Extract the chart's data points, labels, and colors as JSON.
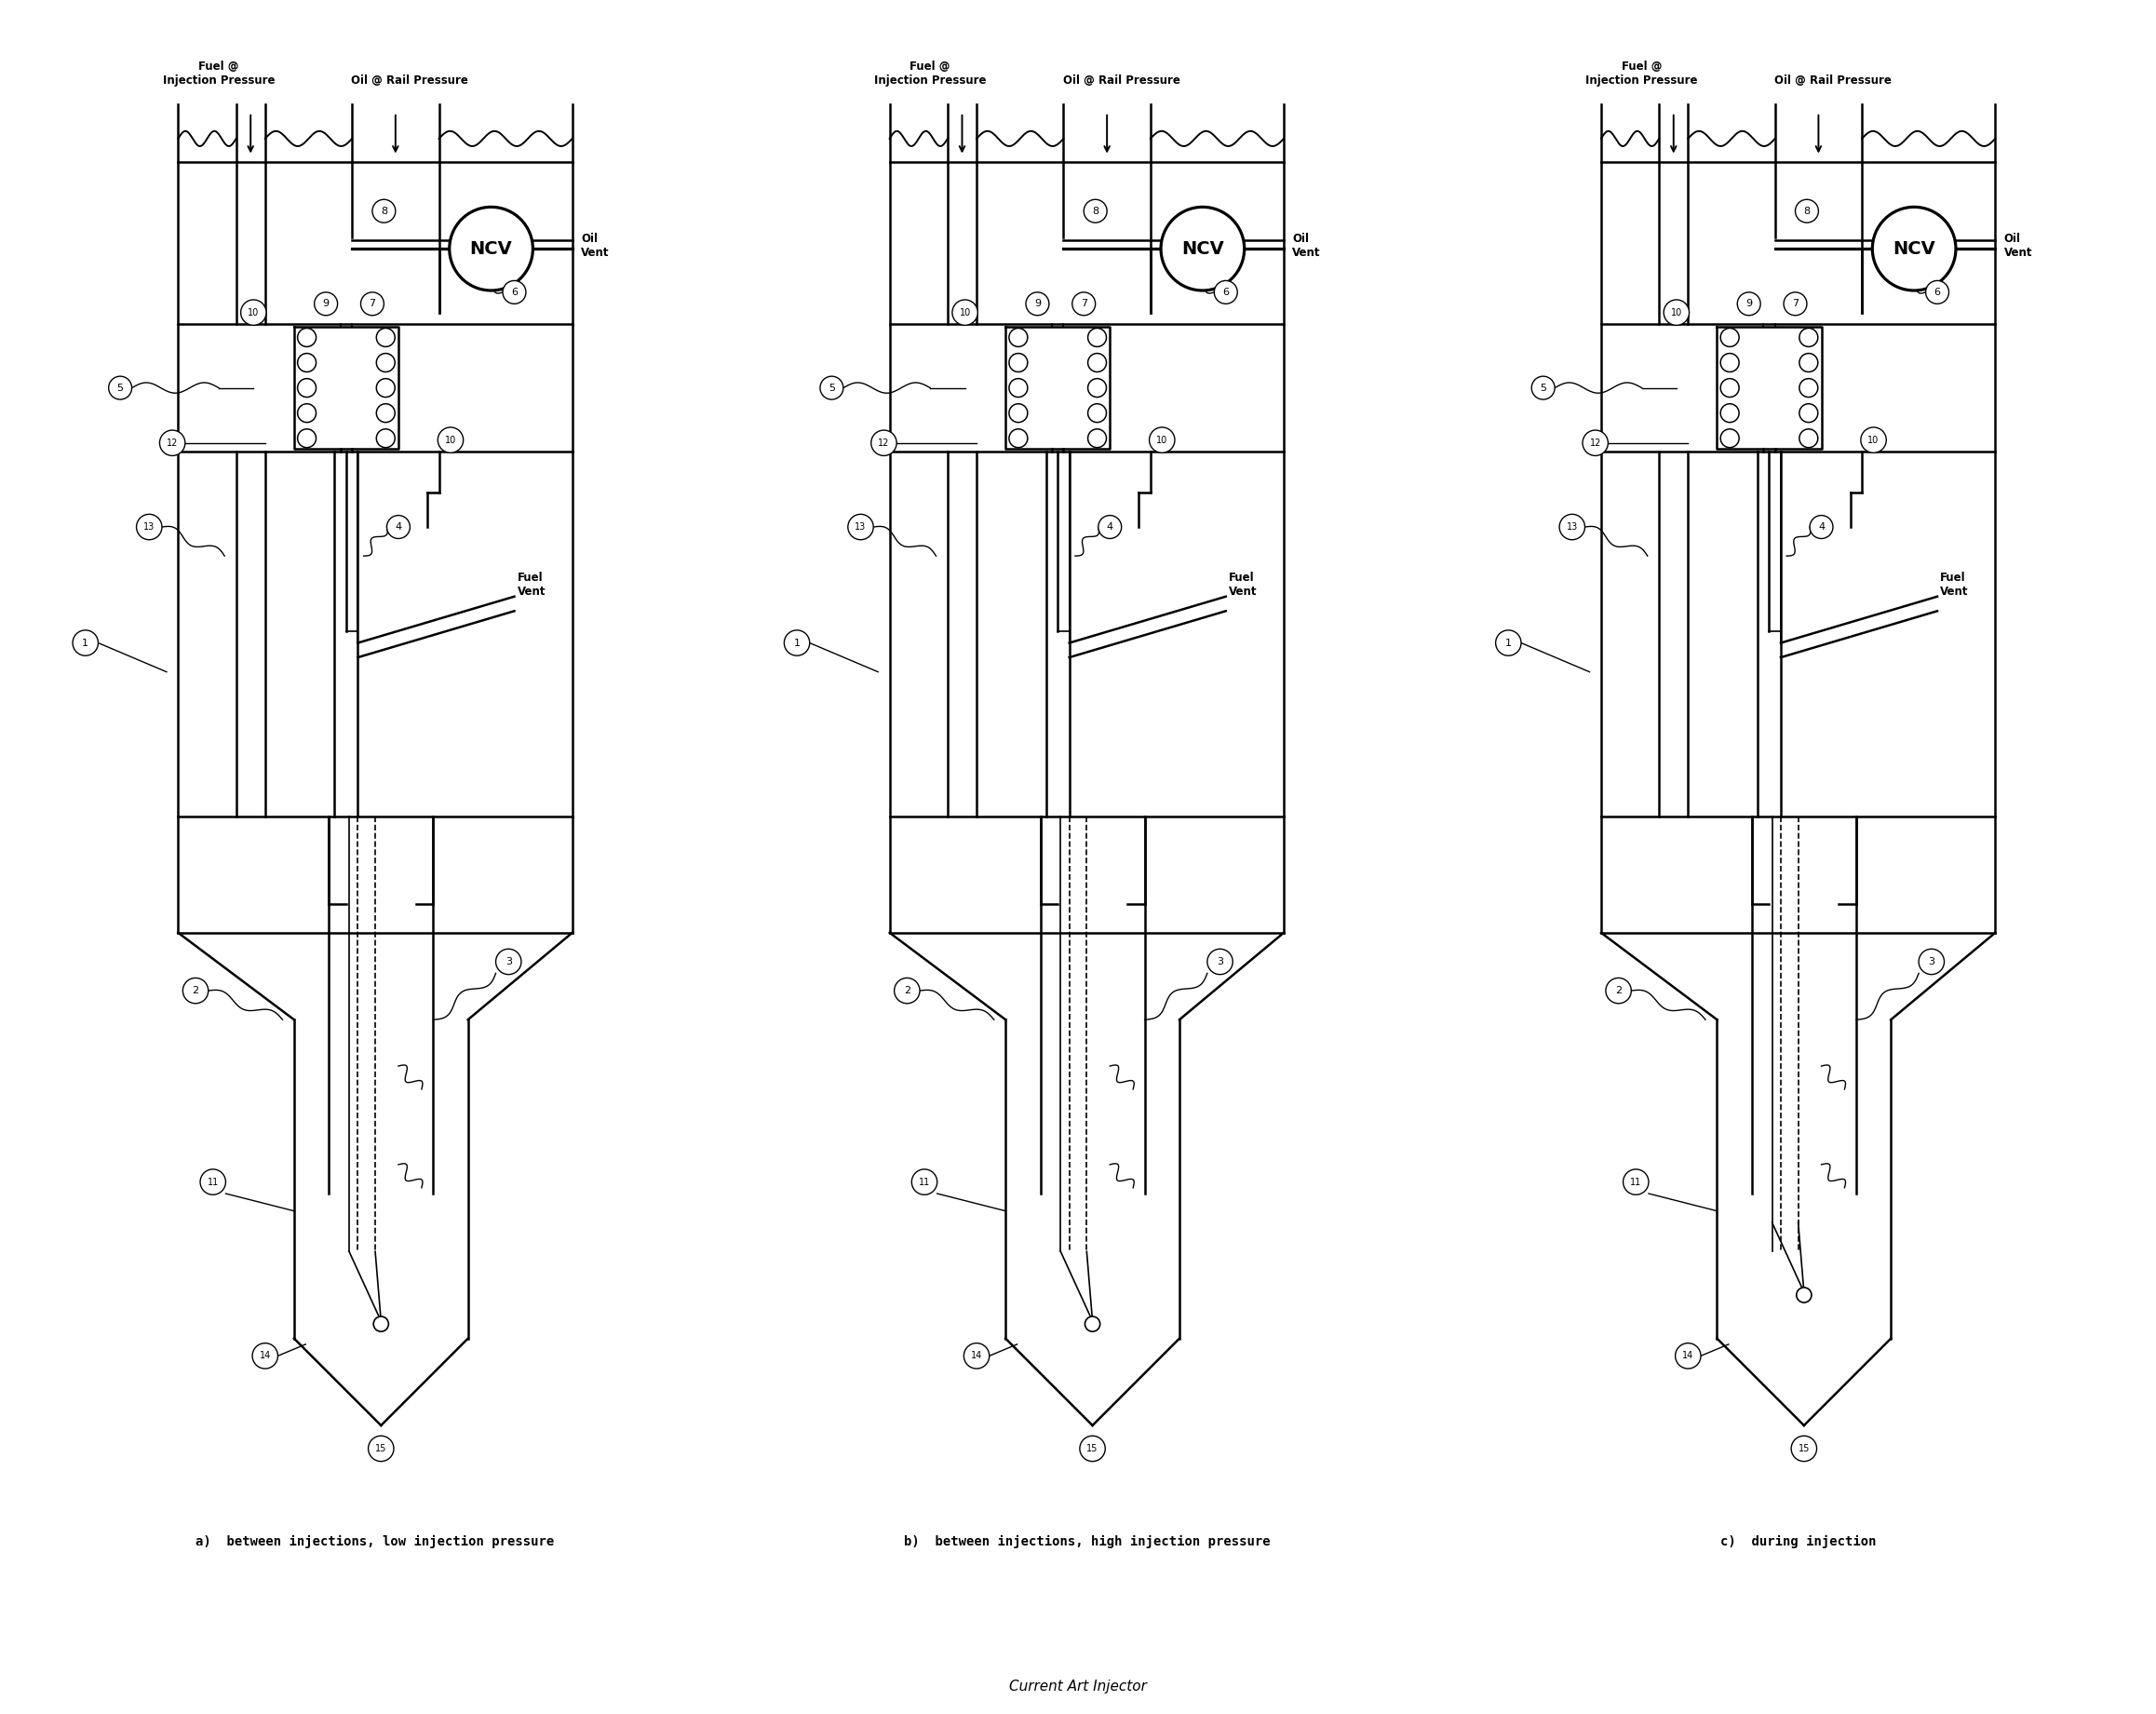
{
  "title": "Current Art Injector",
  "label_a": "a)  between injections, low injection pressure",
  "label_b": "b)  between injections, high injection pressure",
  "label_c": "c)  during injection",
  "bg_color": "#ffffff",
  "line_color": "#000000",
  "lw_main": 1.8,
  "lw_thin": 1.2,
  "font_size_label": 10,
  "font_size_title": 11,
  "font_size_ncv": 14,
  "font_size_number": 8
}
